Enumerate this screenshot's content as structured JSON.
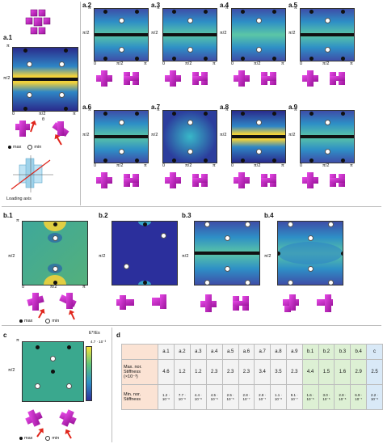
{
  "panels": {
    "a1": {
      "label": "a.1"
    },
    "a2": {
      "label": "a.2"
    },
    "a3": {
      "label": "a.3"
    },
    "a4": {
      "label": "a.4"
    },
    "a5": {
      "label": "a.5"
    },
    "a6": {
      "label": "a.6"
    },
    "a7": {
      "label": "a.7"
    },
    "a8": {
      "label": "a.8"
    },
    "a9": {
      "label": "a.9"
    },
    "b1": {
      "label": "b.1"
    },
    "b2": {
      "label": "b.2"
    },
    "b3": {
      "label": "b.3"
    },
    "b4": {
      "label": "b.4"
    },
    "c": {
      "label": "c"
    },
    "d": {
      "label": "d"
    }
  },
  "axis": {
    "pi": "π",
    "half": "π/2",
    "zero": "0",
    "phi": "φ",
    "theta": "θ"
  },
  "legend": {
    "max": "max",
    "min": "min"
  },
  "loading_axis": "Loading axis",
  "colorbar": {
    "title": "E*/Es",
    "top": "4.7 · 10⁻³"
  },
  "table": {
    "header": [
      "a.1",
      "a.2",
      "a.3",
      "a.4",
      "a.5",
      "a.6",
      "a.7",
      "a.8",
      "a.9",
      "b.1",
      "b.2",
      "b.3",
      "b.4",
      "c"
    ],
    "row1_label": "Max. nor. Stiffness (×10⁻³)",
    "row1": [
      "4.6",
      "1.2",
      "1.2",
      "2.3",
      "2.3",
      "2.3",
      "3.4",
      "3.5",
      "2.3",
      "4.4",
      "1.5",
      "1.6",
      "2.9",
      "2.5"
    ],
    "row2_label": "Min. nor. Stiffness",
    "row2": [
      "1.2 · 10⁻⁶",
      "7.7 · 10⁻⁶",
      "4.4 · 10⁻⁶",
      "4.5 · 10⁻⁶",
      "2.5 · 10⁻⁶",
      "2.8 · 10⁻⁷",
      "2.8 · 10⁻⁷",
      "1.1 · 10⁻⁶",
      "9.1 · 10⁻⁷",
      "1.6 · 10⁻⁶",
      "3.0 · 10⁻⁶",
      "2.8 · 10⁻⁶",
      "6.9 · 10⁻⁷",
      "2.2 · 10⁻⁶"
    ]
  },
  "colors": {
    "accent": "#e0261c",
    "molecule": "#c81fc8"
  }
}
